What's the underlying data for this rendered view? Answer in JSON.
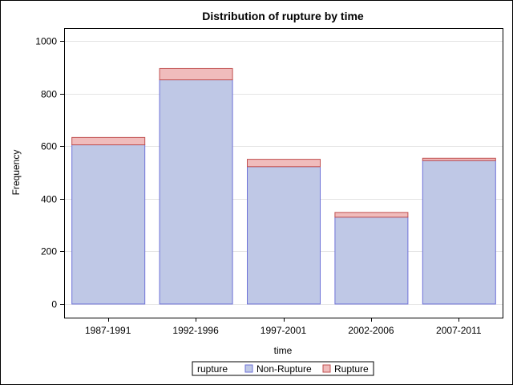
{
  "chart_data": {
    "type": "bar",
    "stacked": true,
    "title": "Distribution of rupture by time",
    "xlabel": "time",
    "ylabel": "Frequency",
    "categories": [
      "1987-1991",
      "1992-1996",
      "1997-2001",
      "2002-2006",
      "2007-2011"
    ],
    "series": [
      {
        "name": "Non-Rupture",
        "values": [
          605,
          852,
          522,
          330,
          545
        ],
        "color": "#bfc8e6",
        "edge": "#6e72d8"
      },
      {
        "name": "Rupture",
        "values": [
          28,
          43,
          28,
          18,
          9
        ],
        "color": "#f0bcbc",
        "edge": "#c05050"
      }
    ],
    "ylim": [
      0,
      1050
    ],
    "yticks": [
      0,
      200,
      400,
      600,
      800,
      1000
    ],
    "grid": true,
    "legend": {
      "title": "rupture",
      "placement": "bottom"
    }
  }
}
